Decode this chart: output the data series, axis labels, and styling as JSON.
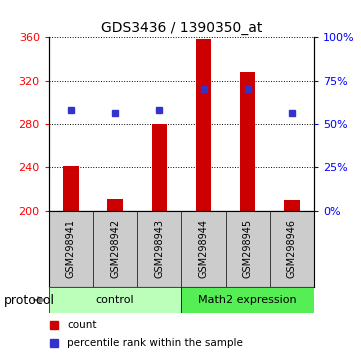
{
  "title": "GDS3436 / 1390350_at",
  "samples": [
    "GSM298941",
    "GSM298942",
    "GSM298943",
    "GSM298944",
    "GSM298945",
    "GSM298946"
  ],
  "groups": [
    "control",
    "control",
    "control",
    "Math2 expression",
    "Math2 expression",
    "Math2 expression"
  ],
  "bar_values": [
    241,
    211,
    280,
    358,
    328,
    210
  ],
  "dot_values_pct": [
    58,
    56,
    58,
    70,
    70,
    56
  ],
  "bar_color": "#cc0000",
  "dot_color": "#3333cc",
  "ylim_left": [
    200,
    360
  ],
  "yticks_left": [
    200,
    240,
    280,
    320,
    360
  ],
  "ylim_right": [
    0,
    100
  ],
  "yticks_right": [
    0,
    25,
    50,
    75,
    100
  ],
  "group_colors": {
    "control": "#bbffbb",
    "Math2 expression": "#55ee55"
  },
  "group_label": "protocol",
  "legend_items": [
    {
      "label": "count",
      "color": "#cc0000"
    },
    {
      "label": "percentile rank within the sample",
      "color": "#3333cc"
    }
  ],
  "background_color": "#ffffff",
  "sample_area_color": "#cccccc"
}
